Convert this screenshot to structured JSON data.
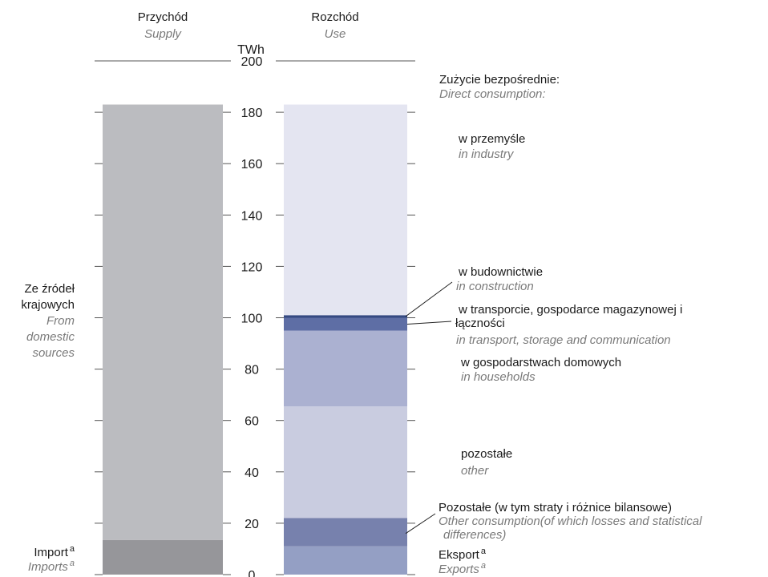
{
  "chart_data": {
    "type": "bar",
    "unit": "TWh",
    "ylim": [
      0,
      200
    ],
    "y_ticks": [
      0,
      20,
      40,
      60,
      80,
      100,
      120,
      140,
      160,
      180,
      200
    ],
    "columns": [
      {
        "title_pl": "Przychód",
        "title_en": "Supply"
      },
      {
        "title_pl": "Rozchód",
        "title_en": "Use"
      }
    ],
    "supply": [
      {
        "label_pl": "Import",
        "label_en": "Imports",
        "footnote": "a",
        "value": 13.5,
        "color": "#96969a"
      },
      {
        "label_pl": "Ze źródeł krajowych",
        "label_en": "From domestic sources",
        "value": 169.5,
        "color": "#bbbcc0"
      }
    ],
    "use": [
      {
        "label_pl": "Eksport",
        "label_en": "Exports",
        "footnote": "a",
        "value": 11,
        "color": "#949fc4"
      },
      {
        "label_pl": "Pozostałe (w tym straty i różnice bilansowe)",
        "label_en": "Other consumption(of which losses and statistical differences)",
        "value": 11,
        "color": "#7781ad"
      },
      {
        "label_pl": "pozostałe",
        "label_en": "other",
        "value": 43.5,
        "color": "#c9cce0"
      },
      {
        "label_pl": "w gospodarstwach domowych",
        "label_en": "in households",
        "value": 29.5,
        "color": "#abb1d1"
      },
      {
        "label_pl": "w transporcie, gospodarce magazynowej i łączności",
        "label_en": "in transport, storage and communication",
        "value": 5,
        "color": "#5e6ea5"
      },
      {
        "label_pl": "w budownictwie",
        "label_en": "in construction",
        "value": 1,
        "color": "#354a82"
      },
      {
        "label_pl": "w przemyśle",
        "label_en": "in industry",
        "value": 82,
        "color": "#e4e5f1"
      }
    ],
    "direct_heading_pl": "Zużycie bezpośrednie:",
    "direct_heading_en": "Direct consumption:"
  }
}
